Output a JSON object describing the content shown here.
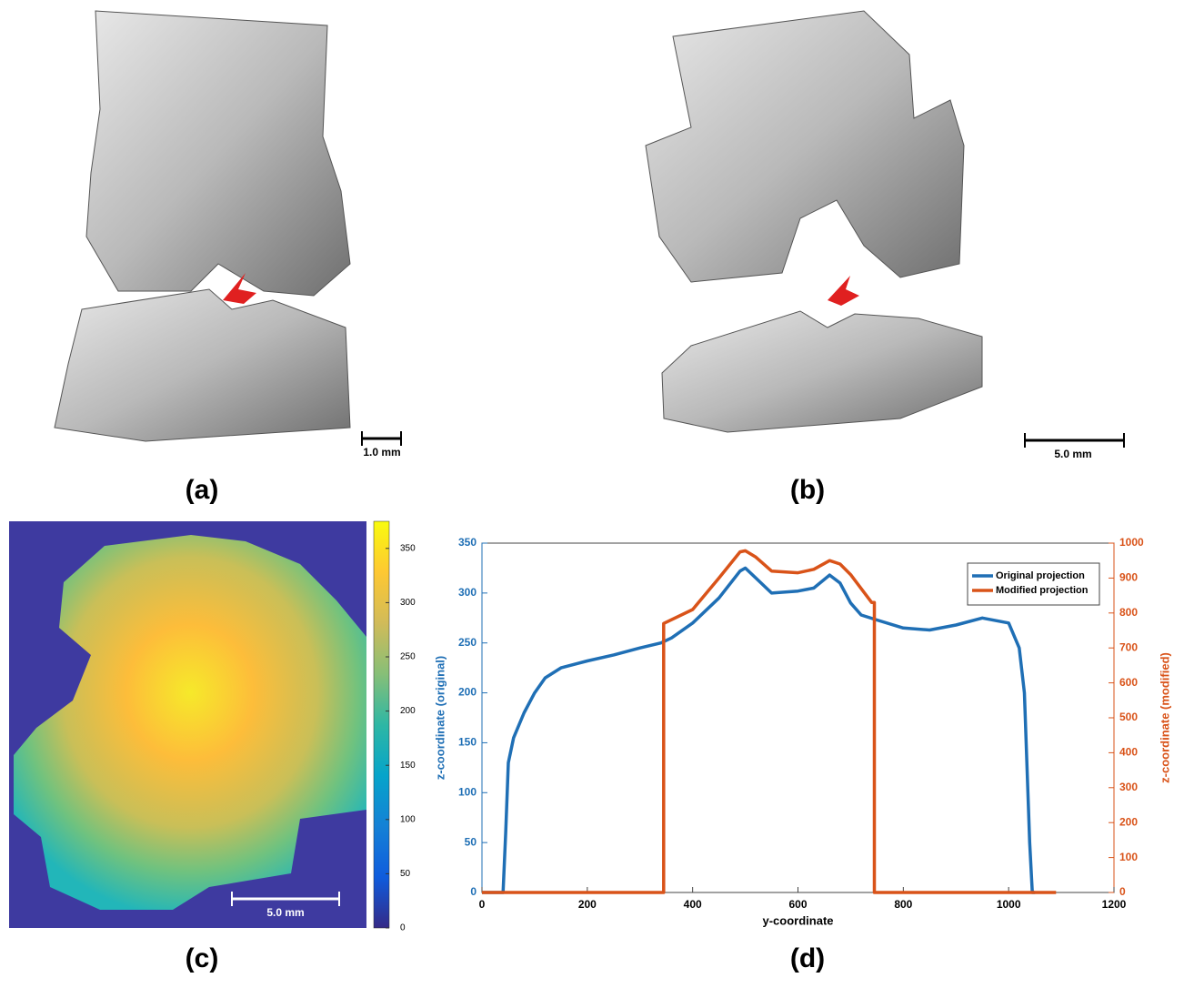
{
  "panels": [
    {
      "label": "(a)",
      "scale_bar": "1.0 mm"
    },
    {
      "label": "(b)",
      "scale_bar": "5.0 mm"
    },
    {
      "label": "(c)",
      "scale_bar": "5.0 mm"
    },
    {
      "label": "(d)"
    }
  ],
  "chart_data": [
    {
      "type": "colorbar",
      "colors": [
        "#352a87",
        "#0f5cdd",
        "#1481d6",
        "#06a4ca",
        "#2eb7a4",
        "#87bf77",
        "#d1bb59",
        "#fec832",
        "#f9fb0e"
      ],
      "ylim": [
        0,
        375
      ],
      "yticks": [
        0,
        50,
        100,
        150,
        200,
        250,
        300,
        350
      ]
    },
    {
      "type": "line",
      "xlabel": "y-coordinate",
      "ylabel": "z-coordinate (original)",
      "y2label": "z-coordinate (modified)",
      "xlim": [
        0,
        1200
      ],
      "xticks": [
        0,
        200,
        400,
        600,
        800,
        1000,
        1200
      ],
      "ylim": [
        0,
        350
      ],
      "yticks": [
        0,
        50,
        100,
        150,
        200,
        250,
        300,
        350
      ],
      "y2lim": [
        0,
        1000
      ],
      "y2ticks": [
        0,
        100,
        200,
        300,
        400,
        500,
        600,
        700,
        800,
        900,
        1000
      ],
      "legend": "upper right",
      "series": [
        {
          "name": "Original projection",
          "color": "#1f6fb5",
          "x": [
            0,
            40,
            45,
            50,
            60,
            80,
            100,
            120,
            150,
            200,
            250,
            300,
            340,
            360,
            400,
            450,
            490,
            500,
            520,
            550,
            600,
            630,
            660,
            680,
            700,
            720,
            750,
            800,
            850,
            900,
            950,
            1000,
            1020,
            1030,
            1040,
            1045,
            1050
          ],
          "values": [
            0,
            0,
            60,
            130,
            155,
            180,
            200,
            215,
            225,
            232,
            238,
            245,
            250,
            255,
            270,
            295,
            322,
            325,
            315,
            300,
            302,
            305,
            318,
            310,
            290,
            278,
            273,
            265,
            263,
            268,
            275,
            270,
            245,
            200,
            50,
            0,
            0
          ]
        },
        {
          "name": "Modified projection",
          "color": "#d95319",
          "axis": "y2",
          "x": [
            0,
            345,
            345,
            400,
            450,
            490,
            500,
            520,
            550,
            600,
            630,
            660,
            680,
            700,
            740,
            745,
            745,
            1090
          ],
          "values": [
            0,
            0,
            770,
            810,
            900,
            975,
            978,
            960,
            920,
            915,
            925,
            950,
            940,
            910,
            830,
            830,
            0,
            0
          ]
        }
      ]
    }
  ]
}
